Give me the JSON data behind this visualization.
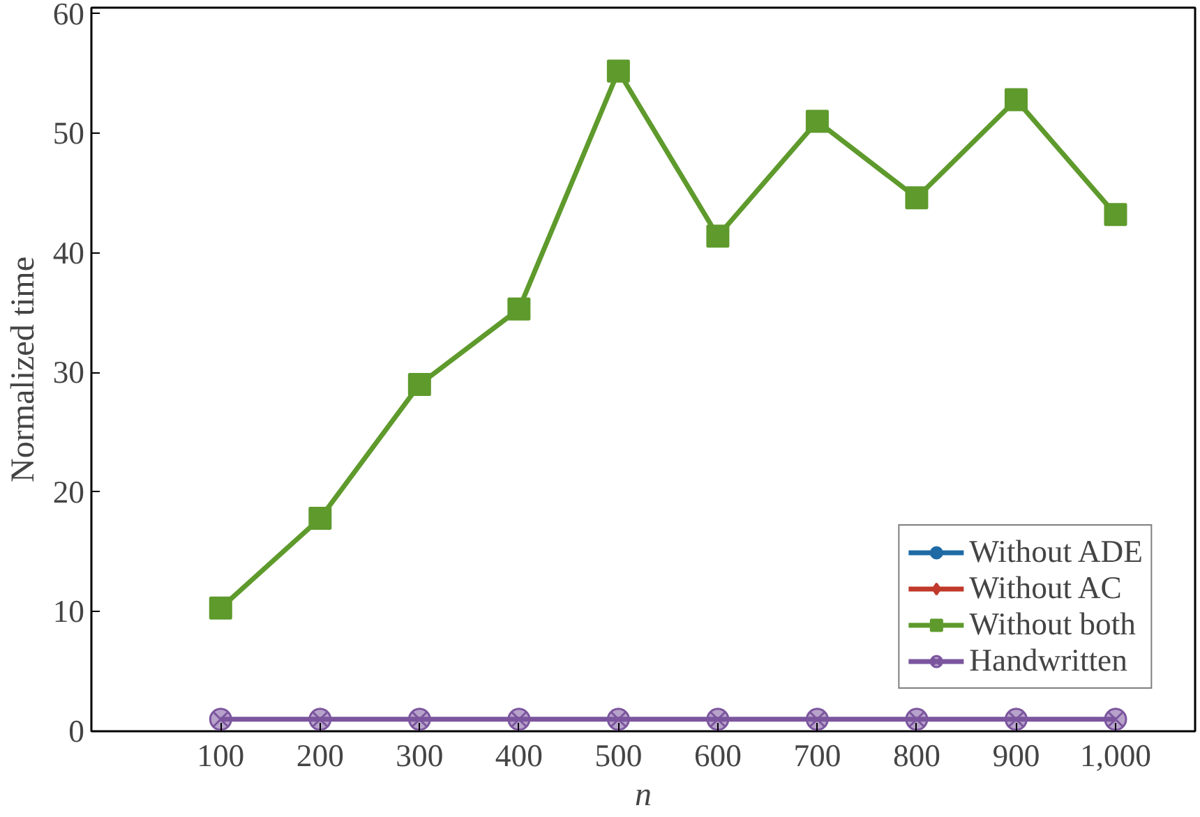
{
  "chart_data": {
    "type": "line",
    "xlabel": "n",
    "ylabel": "Normalized time",
    "x": [
      100,
      200,
      300,
      400,
      500,
      600,
      700,
      800,
      900,
      1000
    ],
    "xlim": [
      -30,
      1080
    ],
    "xticks": [
      100,
      200,
      300,
      400,
      500,
      600,
      700,
      800,
      900,
      {
        "value": 1000,
        "label": "1,000"
      }
    ],
    "ylim": [
      0,
      60.5
    ],
    "yticks": [
      0,
      10,
      20,
      30,
      40,
      50,
      60
    ],
    "grid": false,
    "legend": "bottom right",
    "series": [
      {
        "name": "Without ADE",
        "color": "#1f6aa5",
        "marker": "circle",
        "values": [
          null,
          null,
          null,
          null,
          null,
          null,
          null,
          null,
          null,
          null
        ]
      },
      {
        "name": "Without AC",
        "color": "#c0392b",
        "marker": "diamond",
        "values": [
          null,
          null,
          null,
          null,
          null,
          null,
          null,
          null,
          null,
          null
        ]
      },
      {
        "name": "Without both",
        "color": "#5e9a2c",
        "marker": "square",
        "values": [
          10.3,
          17.8,
          29.0,
          35.3,
          55.2,
          41.4,
          51.0,
          44.6,
          52.8,
          43.2
        ]
      },
      {
        "name": "Handwritten",
        "color": "#7b559e",
        "marker": "cross",
        "values": [
          1,
          1,
          1,
          1,
          1,
          1,
          1,
          1,
          1,
          1
        ]
      }
    ]
  }
}
